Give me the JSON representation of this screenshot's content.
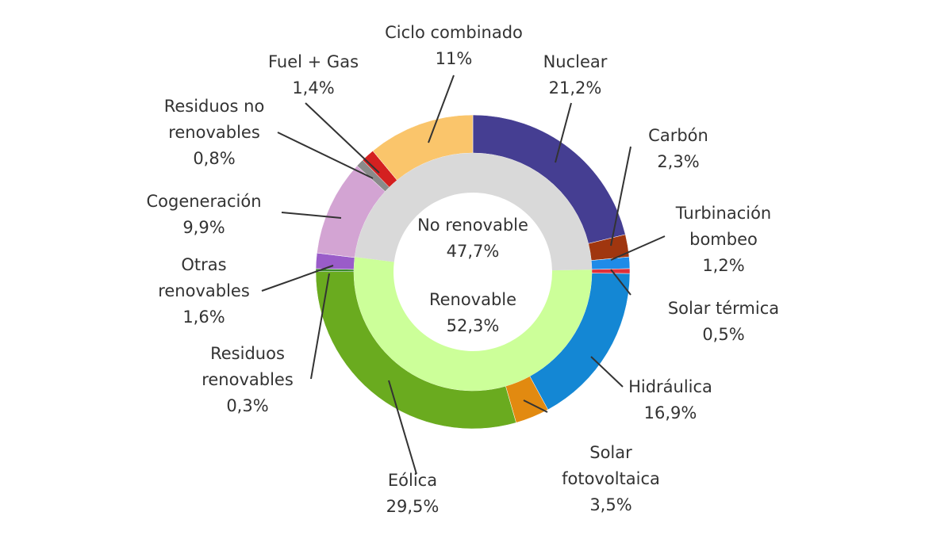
{
  "chart_data": {
    "type": "donut",
    "rings": [
      {
        "categories": [
          "Nuclear",
          "Carbón",
          "Turbinación bombeo",
          "Solar térmica",
          "Hidráulica",
          "Solar fotovoltaica",
          "Eólica",
          "Residuos renovables",
          "Otras renovables",
          "Cogeneración",
          "Residuos no renovables",
          "Fuel + Gas",
          "Ciclo combinado"
        ],
        "values": [
          21.2,
          2.3,
          1.2,
          0.5,
          16.9,
          3.5,
          29.5,
          0.3,
          1.6,
          9.9,
          0.8,
          1.4,
          11
        ],
        "value_labels": [
          "21,2%",
          "2,3%",
          "1,2%",
          "0,5%",
          "16,9%",
          "3,5%",
          "29,5%",
          "0,3%",
          "1,6%",
          "9,9%",
          "0,8%",
          "1,4%",
          "11%"
        ],
        "colors": [
          "#453e92",
          "#a0360f",
          "#1f8be8",
          "#e0303a",
          "#1487d4",
          "#e28a10",
          "#6aab1f",
          "#3c8b2b",
          "#9a5cc9",
          "#d3a4d3",
          "#8a8a8a",
          "#d42020",
          "#fac56b"
        ]
      },
      {
        "categories": [
          "Renovable",
          "No renovable"
        ],
        "values": [
          52.3,
          47.7
        ],
        "value_labels": [
          "52,3%",
          "47,7%"
        ],
        "colors": [
          "#ccff99",
          "#d9d9d9"
        ]
      }
    ]
  }
}
